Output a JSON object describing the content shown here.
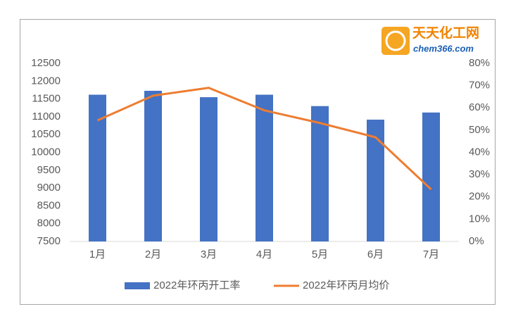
{
  "chart_data": {
    "type": "bar+line",
    "logo_title": "天天化工网",
    "logo_url": "chem366.com",
    "categories": [
      "1月",
      "2月",
      "3月",
      "4月",
      "5月",
      "6月",
      "7月"
    ],
    "series": [
      {
        "name": "2022年环丙开工率",
        "type": "bar",
        "color": "#4472c4",
        "values": [
          11620,
          11730,
          11550,
          11620,
          11300,
          10920,
          11120
        ]
      },
      {
        "name": "2022年环丙月均价",
        "type": "line",
        "axis": "y2",
        "color": "#ed7d31",
        "values": [
          54.4,
          65.5,
          69,
          58.9,
          53.2,
          46.8,
          23.4
        ]
      }
    ],
    "ylim": [
      7500,
      12500
    ],
    "yticks": [
      7500,
      8000,
      8500,
      9000,
      9500,
      10000,
      10500,
      11000,
      11500,
      12000,
      12500
    ],
    "y2lim": [
      0,
      80
    ],
    "y2ticks": [
      {
        "value": 0,
        "label": "0%"
      },
      {
        "value": 10,
        "label": "10%"
      },
      {
        "value": 20,
        "label": "20%"
      },
      {
        "value": 30,
        "label": "30%"
      },
      {
        "value": 40,
        "label": "40%"
      },
      {
        "value": 50,
        "label": "50%"
      },
      {
        "value": 60,
        "label": "60%"
      },
      {
        "value": 70,
        "label": "70%"
      },
      {
        "value": 80,
        "label": "80%"
      }
    ],
    "legend": "bottom"
  }
}
